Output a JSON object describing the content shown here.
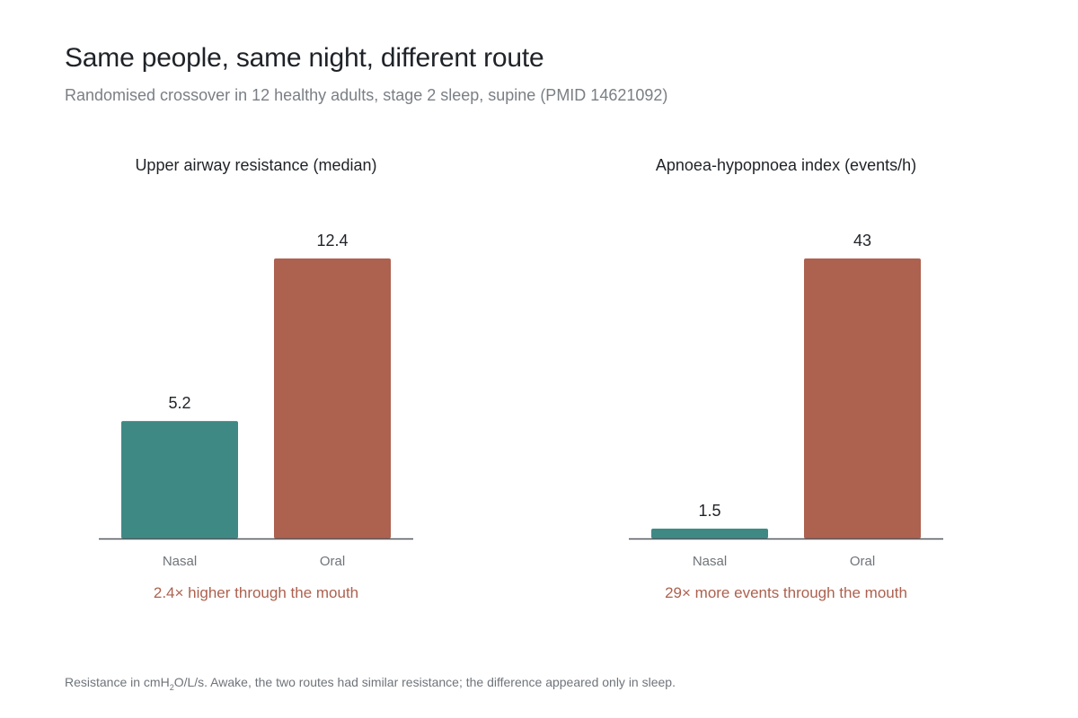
{
  "header": {
    "title": "Same people, same night, different route",
    "subtitle": "Randomised crossover in 12 healthy adults, stage 2 sleep, supine (PMID 14621092)"
  },
  "footnote": {
    "prefix": "Resistance in cmH",
    "subscript": "2",
    "suffix": "O/L/s. Awake, the two routes had similar resistance; the difference appeared only in sleep."
  },
  "colors": {
    "nasal": "#3f8985",
    "oral": "#ad614f",
    "annotation": "#ad614f",
    "axis": "#555a60",
    "value_label": "#1f2328",
    "tick_label": "#6f747a"
  },
  "chart_data": [
    {
      "type": "bar",
      "title": "Upper airway resistance (median)",
      "categories": [
        "Nasal",
        "Oral"
      ],
      "values": [
        5.2,
        12.4
      ],
      "value_labels": [
        "5.2",
        "12.4"
      ],
      "ylim": [
        0,
        12.4
      ],
      "annotation": "2.4× higher through the mouth",
      "xlabel": "",
      "ylabel": ""
    },
    {
      "type": "bar",
      "title": "Apnoea-hypopnoea index (events/h)",
      "categories": [
        "Nasal",
        "Oral"
      ],
      "values": [
        1.5,
        43
      ],
      "value_labels": [
        "1.5",
        "43"
      ],
      "ylim": [
        0,
        43
      ],
      "annotation": "29× more events through the mouth",
      "xlabel": "",
      "ylabel": ""
    }
  ]
}
